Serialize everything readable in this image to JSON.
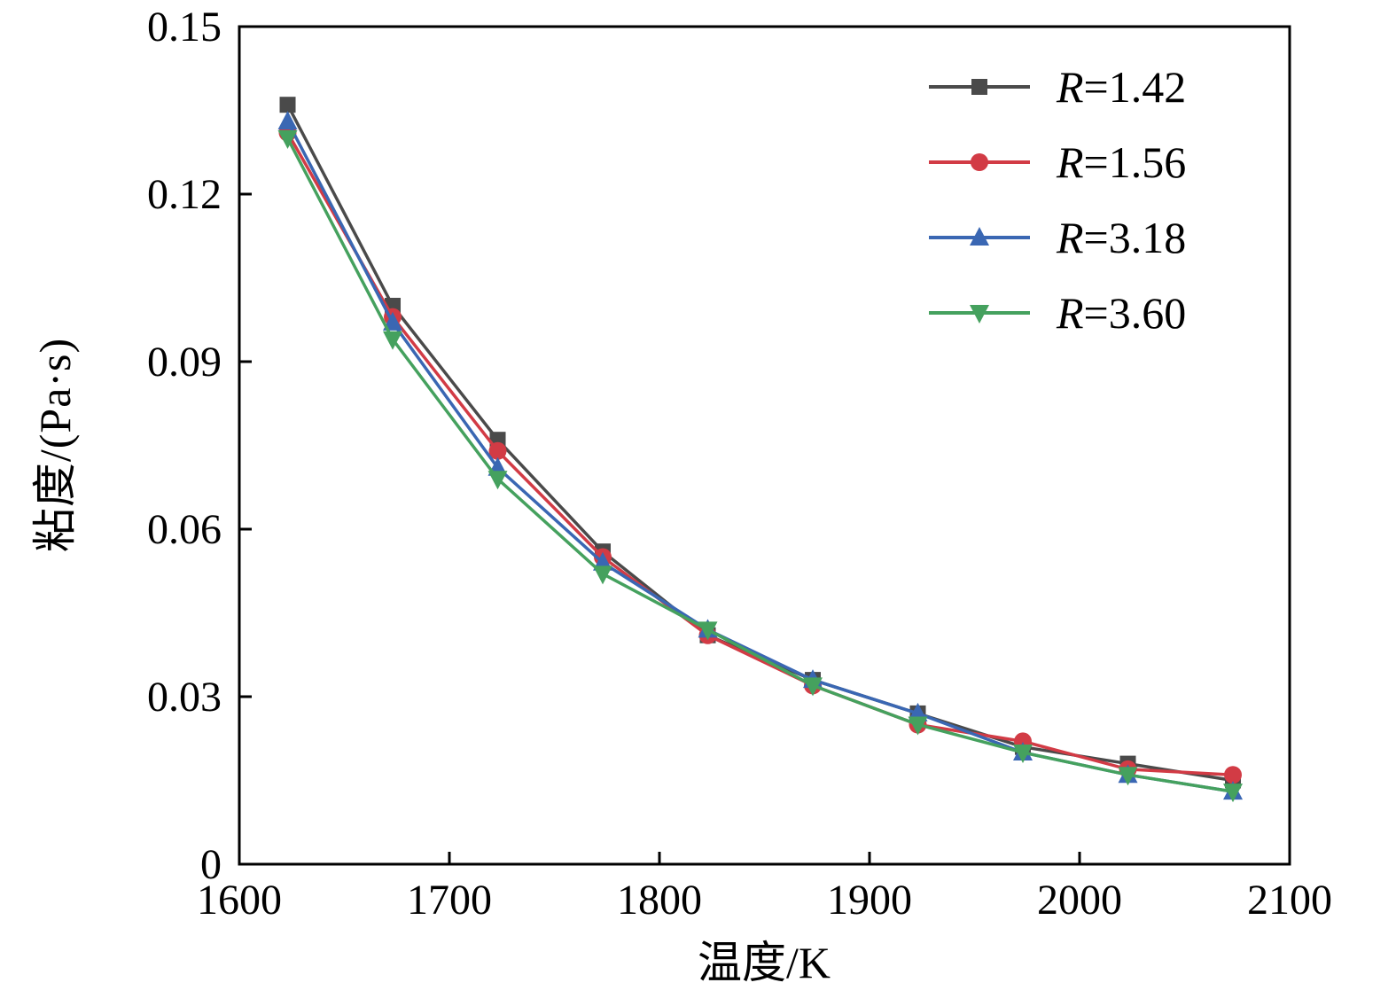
{
  "chart_data": {
    "type": "line",
    "title": "",
    "xlabel": "温度/K",
    "ylabel": "粘度/(Pa·s)",
    "xlim": [
      1600,
      2100
    ],
    "ylim": [
      0,
      0.15
    ],
    "xticks": [
      1600,
      1700,
      1800,
      1900,
      2000,
      2100
    ],
    "xtick_labels": [
      "1600",
      "1700",
      "1800",
      "1900",
      "2000",
      "2100"
    ],
    "yticks": [
      0,
      0.03,
      0.06,
      0.09,
      0.12,
      0.15
    ],
    "ytick_labels": [
      "0",
      "0.03",
      "0.06",
      "0.09",
      "0.12",
      "0.15"
    ],
    "grid": false,
    "legend_position": "top-right",
    "x": [
      1623,
      1673,
      1723,
      1773,
      1823,
      1873,
      1923,
      1973,
      2023,
      2073
    ],
    "series": [
      {
        "name": "R=1.42",
        "color": "#4a4a4a",
        "marker": "square",
        "values": [
          0.136,
          0.1,
          0.076,
          0.056,
          0.041,
          0.033,
          0.027,
          0.021,
          0.018,
          0.015
        ]
      },
      {
        "name": "R=1.56",
        "color": "#d23b45",
        "marker": "circle",
        "values": [
          0.131,
          0.098,
          0.074,
          0.055,
          0.041,
          0.032,
          0.025,
          0.022,
          0.017,
          0.016
        ]
      },
      {
        "name": "R=3.18",
        "color": "#3a67b3",
        "marker": "triangle-up",
        "values": [
          0.133,
          0.097,
          0.071,
          0.054,
          0.042,
          0.033,
          0.027,
          0.02,
          0.016,
          0.013
        ]
      },
      {
        "name": "R=3.60",
        "color": "#45a15e",
        "marker": "triangle-down",
        "values": [
          0.13,
          0.094,
          0.069,
          0.052,
          0.042,
          0.032,
          0.025,
          0.02,
          0.016,
          0.013
        ]
      }
    ]
  }
}
